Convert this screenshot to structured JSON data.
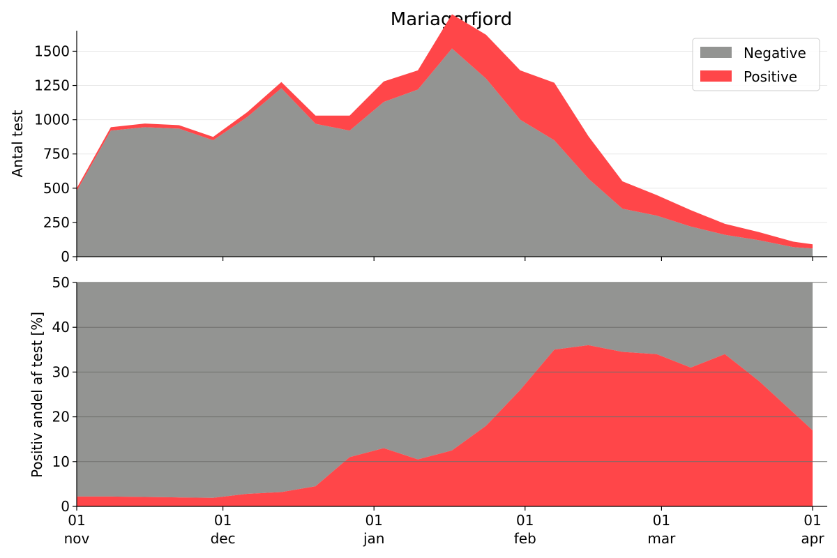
{
  "chart_data": [
    {
      "type": "area",
      "title": "Mariagerfjord",
      "ylabel": "Antal test",
      "xlabel": "",
      "ylim": [
        0,
        1650
      ],
      "yticks": [
        0,
        250,
        500,
        750,
        1000,
        1250,
        1500
      ],
      "grid": "horizontal",
      "stacked": true,
      "legend": {
        "placement": "top-right",
        "entries": [
          "Negative",
          "Positive"
        ]
      },
      "x": [
        "11-01",
        "11-08",
        "11-15",
        "11-22",
        "11-29",
        "12-06",
        "12-13",
        "12-20",
        "12-27",
        "01-03",
        "01-10",
        "01-17",
        "01-24",
        "01-31",
        "02-07",
        "02-14",
        "02-21",
        "02-28",
        "03-07",
        "03-14",
        "03-21",
        "03-28",
        "04-01"
      ],
      "series": [
        {
          "name": "Negative",
          "color": "#939492",
          "values": [
            480,
            920,
            945,
            935,
            850,
            1020,
            1230,
            970,
            920,
            1130,
            1220,
            1520,
            1300,
            1000,
            850,
            570,
            350,
            300,
            220,
            160,
            120,
            70,
            60
          ]
        },
        {
          "name": "Positive",
          "color": "#ff4649",
          "values": [
            20,
            25,
            27,
            25,
            25,
            35,
            45,
            60,
            110,
            150,
            140,
            250,
            320,
            360,
            420,
            310,
            200,
            150,
            120,
            80,
            60,
            40,
            30
          ]
        }
      ]
    },
    {
      "type": "area",
      "title": "",
      "ylabel": "Positiv andel af test [%]",
      "xlabel": "",
      "ylim": [
        0,
        50
      ],
      "yticks": [
        0,
        10,
        20,
        30,
        40,
        50
      ],
      "grid": "horizontal",
      "stacked": true,
      "x": [
        "11-01",
        "11-08",
        "11-15",
        "11-22",
        "11-29",
        "12-06",
        "12-13",
        "12-20",
        "12-27",
        "01-03",
        "01-10",
        "01-17",
        "01-24",
        "01-31",
        "02-07",
        "02-14",
        "02-21",
        "02-28",
        "03-07",
        "03-14",
        "03-21",
        "03-28",
        "04-01"
      ],
      "series": [
        {
          "name": "Positive",
          "color": "#ff4649",
          "values": [
            2.2,
            2.2,
            2.1,
            2.0,
            1.9,
            2.8,
            3.2,
            4.5,
            11.0,
            13.0,
            10.5,
            12.5,
            18.0,
            26.0,
            35.0,
            36.0,
            34.5,
            34.0,
            31.0,
            34.0,
            28.0,
            21.0,
            17.0
          ]
        },
        {
          "name": "Negative",
          "color": "#939492",
          "values": [
            47.8,
            47.8,
            47.9,
            48.0,
            48.1,
            47.2,
            46.8,
            45.5,
            39.0,
            37.0,
            39.5,
            37.5,
            32.0,
            24.0,
            15.0,
            14.0,
            15.5,
            16.0,
            19.0,
            16.0,
            22.0,
            29.0,
            33.0
          ]
        }
      ]
    }
  ],
  "xticks": [
    {
      "date": "11-01",
      "day": "01",
      "month": "nov"
    },
    {
      "date": "12-01",
      "day": "01",
      "month": "dec"
    },
    {
      "date": "01-01",
      "day": "01",
      "month": "jan"
    },
    {
      "date": "02-01",
      "day": "01",
      "month": "feb"
    },
    {
      "date": "03-01",
      "day": "01",
      "month": "mar"
    },
    {
      "date": "04-01",
      "day": "01",
      "month": "apr"
    }
  ]
}
